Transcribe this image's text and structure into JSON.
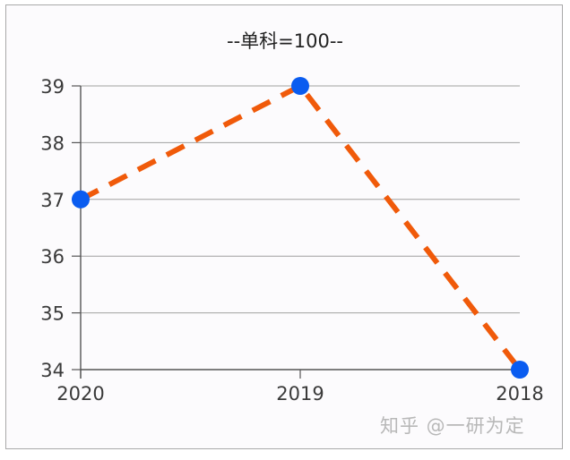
{
  "chart_data": {
    "type": "line",
    "title": "--单科=100--",
    "categories": [
      "2020",
      "2019",
      "2018"
    ],
    "series": [
      {
        "name": "单科",
        "values": [
          37,
          39,
          34
        ],
        "line_color": "#f05a0a",
        "line_style": "dashed",
        "marker_color": "#0a5cf0"
      }
    ],
    "xlabel": "",
    "ylabel": "",
    "ylim": [
      34,
      39
    ],
    "yticks": [
      "34",
      "35",
      "36",
      "37",
      "38",
      "39"
    ],
    "grid": true,
    "legend": "none"
  },
  "watermark": "知乎 @一研为定"
}
